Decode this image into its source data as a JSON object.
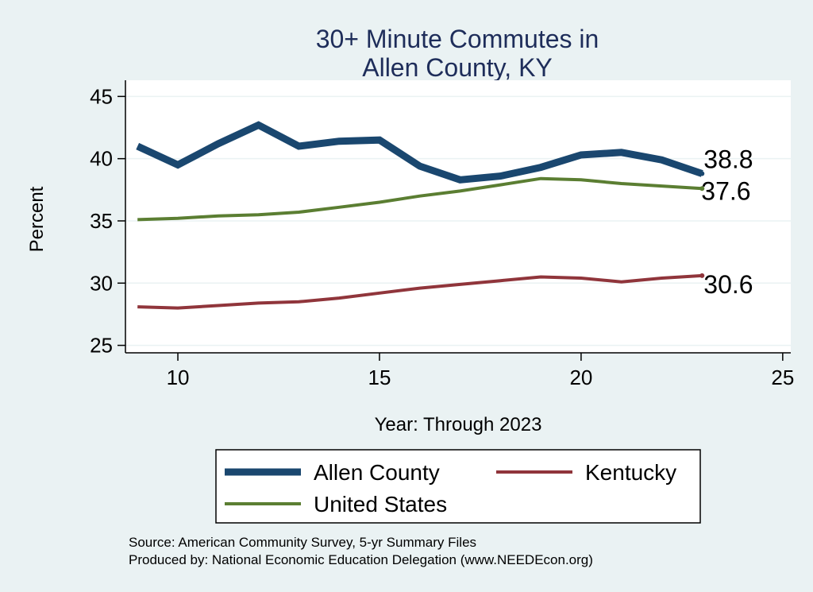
{
  "chart_data": {
    "type": "line",
    "title_lines": [
      "30+ Minute Commutes in",
      "Allen County, KY"
    ],
    "xlabel": "Year: Through 2023",
    "ylabel": "Percent",
    "xlim": [
      8.7,
      25.2
    ],
    "ylim": [
      24.4,
      46.3
    ],
    "xticks": [
      10,
      15,
      20,
      25
    ],
    "yticks": [
      25,
      30,
      35,
      40,
      45
    ],
    "grid": true,
    "series": [
      {
        "name": "Allen County",
        "color": "#1a476f",
        "width": "thick",
        "x": [
          9,
          10,
          11,
          12,
          13,
          14,
          15,
          16,
          17,
          18,
          19,
          20,
          21,
          22,
          23
        ],
        "values": [
          41.0,
          39.5,
          41.2,
          42.7,
          41.0,
          41.4,
          41.5,
          39.4,
          38.3,
          38.6,
          39.3,
          40.3,
          40.5,
          39.9,
          38.8
        ],
        "end_label": "38.8"
      },
      {
        "name": "United States",
        "color": "#5b7e32",
        "width": "medium",
        "x": [
          9,
          10,
          11,
          12,
          13,
          14,
          15,
          16,
          17,
          18,
          19,
          20,
          21,
          22,
          23
        ],
        "values": [
          35.1,
          35.2,
          35.4,
          35.5,
          35.7,
          36.1,
          36.5,
          37.0,
          37.4,
          37.9,
          38.4,
          38.3,
          38.0,
          37.8,
          37.6
        ],
        "end_label": "37.6"
      },
      {
        "name": "Kentucky",
        "color": "#90353b",
        "width": "medium",
        "x": [
          9,
          10,
          11,
          12,
          13,
          14,
          15,
          16,
          17,
          18,
          19,
          20,
          21,
          22,
          23
        ],
        "values": [
          28.1,
          28.0,
          28.2,
          28.4,
          28.5,
          28.8,
          29.2,
          29.6,
          29.9,
          30.2,
          30.5,
          30.4,
          30.1,
          30.4,
          30.6
        ],
        "end_label": "30.6"
      }
    ],
    "legend_placement": "bottom",
    "notes": [
      "Source: American Community Survey, 5-yr Summary Files",
      "Produced by: National Economic Education Delegation (www.NEEDEcon.org)"
    ]
  }
}
